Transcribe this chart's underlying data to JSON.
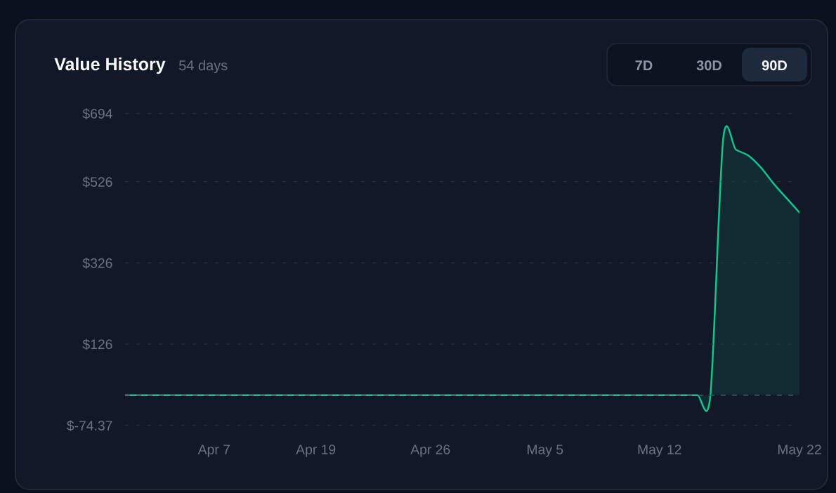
{
  "chart_data": {
    "type": "area",
    "title": "Value History",
    "subtitle": "54 days",
    "annotations": [
      "7D",
      "30D",
      "90D"
    ],
    "categories": [
      null,
      null,
      null,
      null,
      null,
      null,
      null,
      "Apr 7",
      null,
      null,
      null,
      null,
      null,
      null,
      null,
      "Apr 19",
      null,
      null,
      null,
      null,
      null,
      null,
      null,
      null,
      "Apr 26",
      null,
      null,
      null,
      null,
      null,
      null,
      null,
      null,
      "May 5",
      null,
      null,
      null,
      null,
      null,
      null,
      null,
      null,
      "May 12",
      null,
      null,
      null,
      null,
      null,
      null,
      null,
      null,
      null,
      null,
      "May 22"
    ],
    "values": [
      0,
      0,
      0,
      0,
      0,
      0,
      0,
      0,
      0,
      0,
      0,
      0,
      0,
      0,
      0,
      0,
      0,
      0,
      0,
      0,
      0,
      0,
      0,
      0,
      0,
      0,
      0,
      0,
      0,
      0,
      0,
      0,
      0,
      0,
      0,
      0,
      0,
      0,
      0,
      0,
      0,
      0,
      0,
      0,
      0,
      0,
      0,
      630,
      605,
      590,
      560,
      520,
      485,
      450
    ],
    "color": "#12c48b",
    "ylim": [
      -74.37,
      694
    ],
    "yticks": [
      {
        "value": 694,
        "label": "$694"
      },
      {
        "value": 526,
        "label": "$526"
      },
      {
        "value": 326,
        "label": "$326"
      },
      {
        "value": 126,
        "label": "$126"
      },
      {
        "value": -74.37,
        "label": "$-74.37"
      }
    ],
    "grid": "y",
    "ref_lines": [
      {
        "axis": "y",
        "value": 0,
        "color": "#4b5563",
        "line_style": "dashed"
      }
    ]
  }
}
